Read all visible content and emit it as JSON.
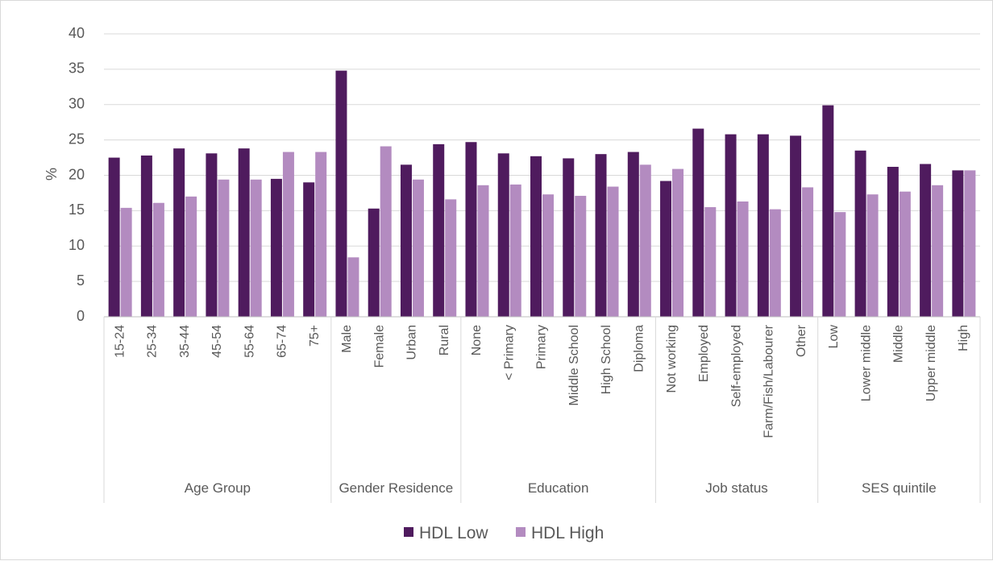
{
  "chart_data": {
    "type": "bar",
    "ylabel": "%",
    "ylim": [
      0,
      40
    ],
    "yticks": [
      0,
      5,
      10,
      15,
      20,
      25,
      30,
      35,
      40
    ],
    "grid": true,
    "legend_position": "bottom",
    "groups": [
      {
        "label": "Age Group",
        "categories": [
          "15-24",
          "25-34",
          "35-44",
          "45-54",
          "55-64",
          "65-74",
          "75+"
        ]
      },
      {
        "label": "Gender Residence",
        "categories": [
          "Male",
          "Female",
          "Urban",
          "Rural"
        ]
      },
      {
        "label": "Education",
        "categories": [
          "None",
          "< Primary",
          "Primary",
          "Middle School",
          "High School",
          "Diploma"
        ]
      },
      {
        "label": "Job status",
        "categories": [
          "Not working",
          "Employed",
          "Self-employed",
          "Farm/Fish/Labourer",
          "Other"
        ]
      },
      {
        "label": "SES quintile",
        "categories": [
          "Low",
          "Lower middle",
          "Middle",
          "Upper middle",
          "High"
        ]
      }
    ],
    "categories": [
      "15-24",
      "25-34",
      "35-44",
      "45-54",
      "55-64",
      "65-74",
      "75+",
      "Male",
      "Female",
      "Urban",
      "Rural",
      "None",
      "< Primary",
      "Primary",
      "Middle School",
      "High School",
      "Diploma",
      "Not working",
      "Employed",
      "Self-employed",
      "Farm/Fish/Labourer",
      "Other",
      "Low",
      "Lower middle",
      "Middle",
      "Upper middle",
      "High"
    ],
    "series": [
      {
        "name": "HDL Low",
        "color": "#4f1b5e",
        "values": [
          22.5,
          22.8,
          23.8,
          23.1,
          23.8,
          19.5,
          19.0,
          34.8,
          15.3,
          21.5,
          24.4,
          24.7,
          23.1,
          22.7,
          22.4,
          23.0,
          23.3,
          19.2,
          26.6,
          25.8,
          25.8,
          25.6,
          29.9,
          23.5,
          21.2,
          21.6,
          20.7
        ]
      },
      {
        "name": "HDL High",
        "color": "#b38bc0",
        "values": [
          15.4,
          16.1,
          17.0,
          19.4,
          19.4,
          23.3,
          23.3,
          8.4,
          24.1,
          19.4,
          16.6,
          18.6,
          18.7,
          17.3,
          17.1,
          18.4,
          21.5,
          20.9,
          15.5,
          16.3,
          15.2,
          18.3,
          14.8,
          17.3,
          17.7,
          18.6,
          20.7
        ]
      }
    ]
  }
}
